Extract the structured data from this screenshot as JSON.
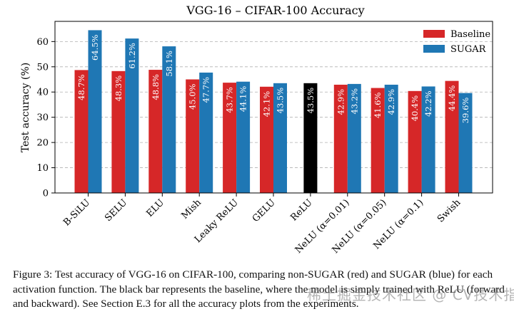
{
  "chart_data": {
    "type": "bar",
    "title": "VGG-16 – CIFAR-100 Accuracy",
    "ylabel": "Test accuracy (%)",
    "xlabel": "",
    "ylim": [
      0,
      68
    ],
    "yticks": [
      0,
      10,
      20,
      30,
      40,
      50,
      60
    ],
    "grid": "horizontal dashed",
    "legend_position": "top-right",
    "categories": [
      "B-SiLU",
      "SELU",
      "ELU",
      "Mish",
      "Leaky ReLU",
      "GELU",
      "ReLU",
      "NeLU (α=0.01)",
      "NeLU (α=0.05)",
      "NeLU (α=0.1)",
      "Swish"
    ],
    "series": [
      {
        "name": "Baseline",
        "color": "#d62728",
        "values": [
          48.7,
          48.3,
          48.8,
          45.0,
          43.7,
          42.1,
          null,
          42.9,
          41.6,
          40.4,
          44.4
        ],
        "labels": [
          "48.7%",
          "48.3%",
          "48.8%",
          "45.0%",
          "43.7%",
          "42.1%",
          null,
          "42.9%",
          "41.6%",
          "40.4%",
          "44.4%"
        ]
      },
      {
        "name": "SUGAR",
        "color": "#1f77b4",
        "values": [
          64.5,
          61.2,
          58.1,
          47.7,
          44.1,
          43.5,
          null,
          43.2,
          42.9,
          42.2,
          39.6
        ],
        "labels": [
          "64.5%",
          "61.2%",
          "58.1%",
          "47.7%",
          "44.1%",
          "43.5%",
          null,
          "43.2%",
          "42.9%",
          "42.2%",
          "39.6%"
        ]
      }
    ],
    "reference_bar": {
      "category": "ReLU",
      "value": 43.5,
      "label": "43.5%",
      "color": "#000000"
    }
  },
  "caption": {
    "text": "Figure 3: Test accuracy of VGG-16 on CIFAR-100, comparing non-SUGAR (red) and SUGAR (blue) for each activation function. The black bar represents the baseline, where the model is simply trained with ReLU (forward and backward). See Section E.3 for all the accuracy plots from the experiments."
  },
  "watermark": {
    "text": "稀土掘金技术社区 @ CV技术指南"
  }
}
